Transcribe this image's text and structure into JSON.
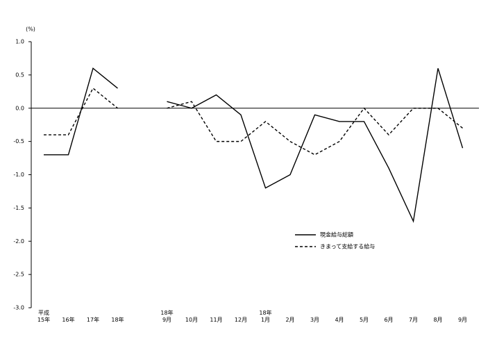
{
  "chart_data": {
    "type": "line",
    "y_unit": "(%)",
    "categories": [
      "平成\n15年",
      "16年",
      "17年",
      "18年",
      null,
      "18年\n9月",
      "10月",
      "11月",
      "12月",
      "18年\n1月",
      "2月",
      "3月",
      "4月",
      "5月",
      "6月",
      "7月",
      "8月",
      "9月"
    ],
    "series": [
      {
        "name": "現金給与総額",
        "color": "#000000",
        "dash": "solid",
        "values": [
          -0.7,
          -0.7,
          0.6,
          0.3,
          null,
          0.1,
          0.0,
          0.2,
          -0.1,
          -1.2,
          -1.0,
          -0.1,
          -0.2,
          -0.2,
          -0.9,
          -1.7,
          0.6,
          -0.6
        ]
      },
      {
        "name": "きまって支給する給与",
        "color": "#000000",
        "dash": "dashed",
        "values": [
          -0.4,
          -0.4,
          0.3,
          0.0,
          null,
          0.0,
          0.1,
          -0.5,
          -0.5,
          -0.2,
          -0.5,
          -0.7,
          -0.5,
          0.0,
          -0.4,
          0.0,
          0.0,
          -0.3
        ]
      }
    ],
    "ylim": [
      -3.0,
      1.0
    ],
    "yticks": [
      {
        "value": 1.0,
        "label": "1.0"
      },
      {
        "value": 0.5,
        "label": "0.5"
      },
      {
        "value": 0,
        "label": "0.0"
      },
      {
        "value": -0.5,
        "label": "-0.5"
      },
      {
        "value": -1.0,
        "label": "-1.0"
      },
      {
        "value": -1.5,
        "label": "-1.5"
      },
      {
        "value": -2.0,
        "label": "-2.0"
      },
      {
        "value": -2.5,
        "label": "-2.5"
      },
      {
        "value": -3.0,
        "label": "-3.0"
      }
    ],
    "grid": false,
    "legend": "right"
  }
}
